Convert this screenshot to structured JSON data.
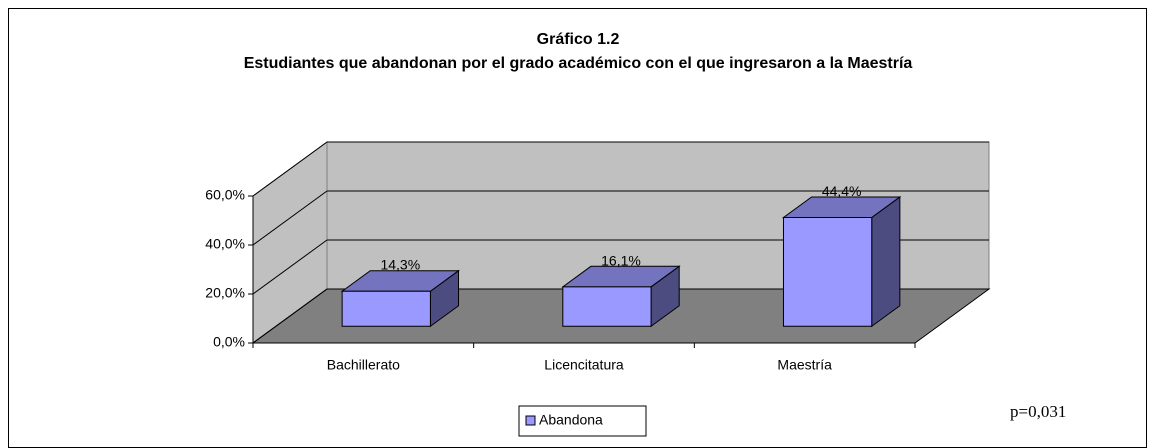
{
  "chart_data": {
    "type": "bar3d",
    "title": "Gráfico 1.2",
    "subtitle": "Estudiantes que abandonan por el grado académico con el que ingresaron a la Maestría",
    "categories": [
      "Bachillerato",
      "Licencitatura",
      "Maestría"
    ],
    "series": [
      {
        "name": "Abandona",
        "color": "#9999ff",
        "values": [
          14.3,
          16.1,
          44.4
        ],
        "value_labels": [
          "14,3%",
          "16,1%",
          "44,4%"
        ]
      }
    ],
    "ylim": [
      0,
      60
    ],
    "yticks": [
      {
        "value": 0,
        "label": "0,0%"
      },
      {
        "value": 20,
        "label": "20,0%"
      },
      {
        "value": 40,
        "label": "40,0%"
      },
      {
        "value": 60,
        "label": "60,0%"
      }
    ],
    "grid": true,
    "legend": "bottom",
    "annotation": "p=0,031"
  }
}
